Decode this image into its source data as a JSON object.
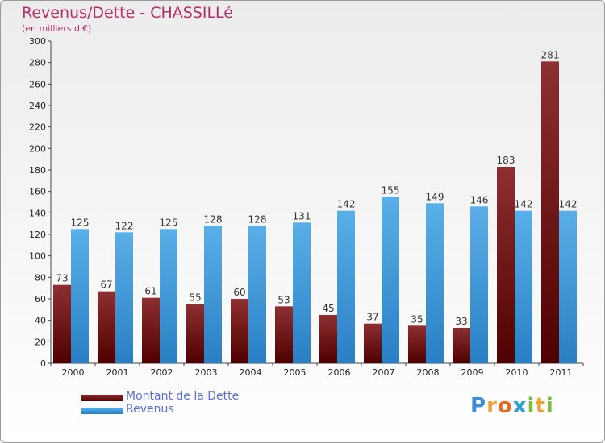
{
  "chart_data": {
    "type": "bar",
    "title": "Revenus/Dette - CHASSILLé",
    "subtitle": "(en milliers d'€)",
    "categories": [
      "2000",
      "2001",
      "2002",
      "2003",
      "2004",
      "2005",
      "2006",
      "2007",
      "2008",
      "2009",
      "2010",
      "2011"
    ],
    "series": [
      {
        "name": "Montant de la Dette",
        "color": "#7a1a1a",
        "values": [
          73,
          67,
          61,
          55,
          60,
          53,
          45,
          37,
          35,
          33,
          183,
          281
        ]
      },
      {
        "name": "Revenus",
        "color": "#3d9be0",
        "values": [
          125,
          122,
          125,
          128,
          128,
          131,
          142,
          155,
          149,
          146,
          142,
          142
        ]
      }
    ],
    "ylim": [
      0,
      300
    ],
    "y_ticks": [
      0,
      20,
      40,
      60,
      80,
      100,
      120,
      140,
      160,
      180,
      200,
      220,
      240,
      260,
      280,
      300
    ],
    "grid": false,
    "legend_position": "bottom-left"
  },
  "logo": {
    "letters": [
      "P",
      "r",
      "o",
      "x",
      "i",
      "t",
      "i"
    ],
    "colors": [
      "#3a8fd8",
      "#f2a03d",
      "#e46a2a",
      "#2e9fd8",
      "#7dbb3c",
      "#f2a03d",
      "#7dbb3c"
    ]
  }
}
